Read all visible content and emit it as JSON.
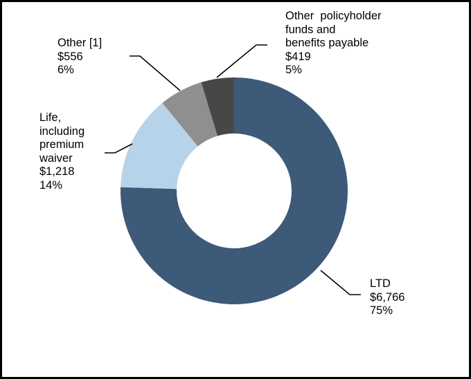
{
  "chart_data": {
    "type": "pie",
    "variant": "donut",
    "title": "",
    "start": "12 o'clock, clockwise",
    "slices": [
      {
        "name": "LTD",
        "label_lines": [
          "LTD"
        ],
        "value_label": "$6,766",
        "value": 6766,
        "percent_label": "75%",
        "color": "#3d5a78"
      },
      {
        "name": "Life, including premium waiver",
        "label_lines": [
          "Life,",
          "including",
          "premium",
          "waiver"
        ],
        "value_label": "$1,218",
        "value": 1218,
        "percent_label": "14%",
        "color": "#b7d3e9"
      },
      {
        "name": "Other [1]",
        "label_lines": [
          "Other [1]"
        ],
        "value_label": "$556",
        "value": 556,
        "percent_label": "6%",
        "color": "#8f8f8f"
      },
      {
        "name": "Other policyholder funds and benefits payable",
        "label_lines": [
          "Other  policyholder",
          "funds and",
          "benefits payable"
        ],
        "value_label": "$419",
        "value": 419,
        "percent_label": "5%",
        "color": "#474747"
      }
    ]
  }
}
